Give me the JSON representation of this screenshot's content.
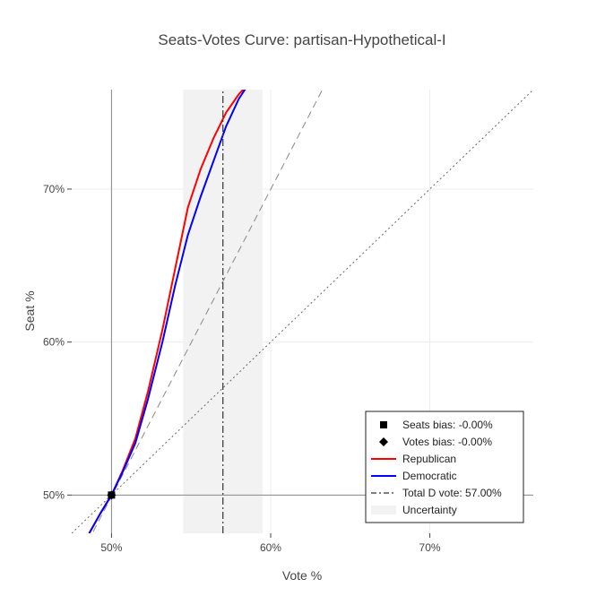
{
  "chart_data": {
    "type": "line",
    "title": "Seats-Votes Curve: partisan-Hypothetical-I",
    "xlabel": "Vote %",
    "ylabel": "Seat %",
    "xlim": [
      47.5,
      76.5
    ],
    "ylim": [
      47.5,
      76.5
    ],
    "x_ticks": [
      50,
      60,
      70
    ],
    "x_tick_labels": [
      "50%",
      "60%",
      "70%"
    ],
    "y_ticks": [
      50,
      60,
      70
    ],
    "y_tick_labels": [
      "50%",
      "60%",
      "70%"
    ],
    "grid": true,
    "legend_position": "bottom-right",
    "series": [
      {
        "name": "Republican",
        "color": "#ff0000",
        "x": [
          48.6,
          49.3,
          50.0,
          50.7,
          51.5,
          52.3,
          53.2,
          54.0,
          54.8,
          55.6,
          56.4,
          57.2,
          58.0,
          58.7
        ],
        "y": [
          47.5,
          48.8,
          50.0,
          51.6,
          53.7,
          56.8,
          60.8,
          64.8,
          68.8,
          71.3,
          73.3,
          75.0,
          76.2,
          77.0
        ]
      },
      {
        "name": "Democratic",
        "color": "#0000ff",
        "x": [
          48.6,
          49.3,
          50.0,
          50.7,
          51.5,
          52.3,
          53.2,
          54.0,
          54.8,
          55.6,
          56.4,
          57.2,
          58.0,
          58.7
        ],
        "y": [
          47.5,
          48.8,
          50.0,
          51.5,
          53.4,
          56.3,
          60.0,
          63.7,
          67.0,
          69.5,
          71.8,
          74.1,
          75.9,
          77.0
        ]
      },
      {
        "name": "Total D vote: 57.00%",
        "style": "dashdot",
        "color": "#333333",
        "x": [
          57.0,
          57.0
        ],
        "y": [
          47.5,
          76.5
        ]
      },
      {
        "name": "Uncertainty",
        "style": "band",
        "color": "#f2f2f2",
        "x_range": [
          54.5,
          59.5
        ]
      }
    ],
    "reference_lines": [
      {
        "style": "dash",
        "color": "#888888",
        "x": [
          47.5,
          63.25
        ],
        "y": [
          44.9,
          76.5
        ]
      },
      {
        "style": "dot",
        "color": "#666666",
        "x": [
          47.5,
          76.5
        ],
        "y": [
          47.5,
          76.5
        ]
      },
      {
        "style": "solid",
        "color": "#888888",
        "orientation": "vertical",
        "value": 50
      },
      {
        "style": "solid",
        "color": "#888888",
        "orientation": "horizontal",
        "value": 50
      }
    ],
    "markers": [
      {
        "name": "Seats bias: -0.00%",
        "symbol": "square",
        "x": 50,
        "y": 50,
        "color": "#000000"
      },
      {
        "name": "Votes bias: -0.00%",
        "symbol": "diamond",
        "x": 50,
        "y": 50,
        "color": "#000000"
      }
    ],
    "legend": [
      {
        "symbol": "square",
        "label": "Seats bias: -0.00%"
      },
      {
        "symbol": "diamond",
        "label": "Votes bias: -0.00%"
      },
      {
        "symbol": "line",
        "color": "#ff0000",
        "label": "Republican"
      },
      {
        "symbol": "line",
        "color": "#0000ff",
        "label": "Democratic"
      },
      {
        "symbol": "dashdot",
        "color": "#333333",
        "label": "Total D vote: 57.00%"
      },
      {
        "symbol": "band",
        "color": "#f2f2f2",
        "label": "Uncertainty"
      }
    ]
  }
}
